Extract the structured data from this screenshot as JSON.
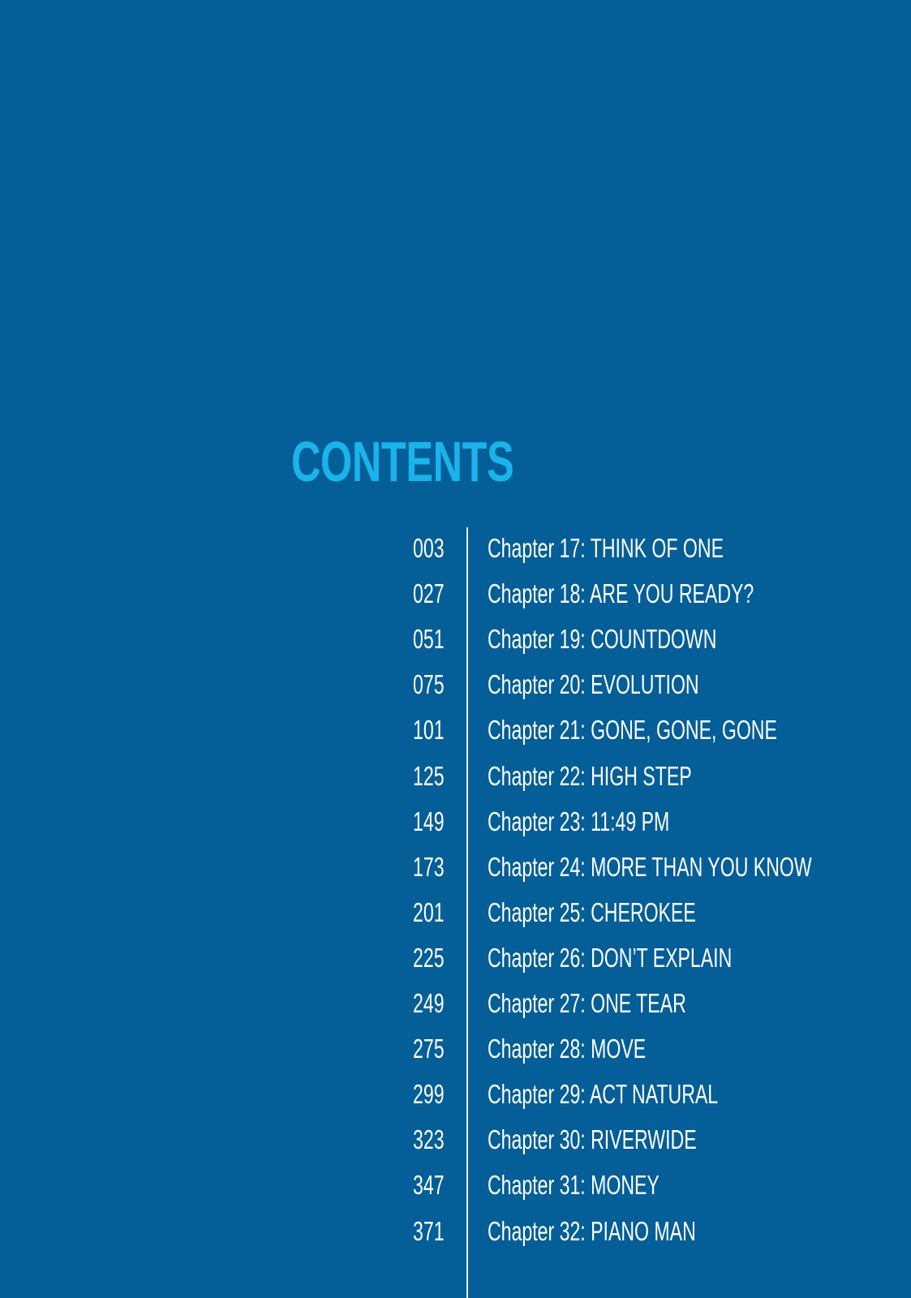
{
  "title": "CONTENTS",
  "colors": {
    "background": "#045e98",
    "title": "#1ab4ec",
    "text": "#ffffff"
  },
  "entries": [
    {
      "page": "003",
      "chapter": "Chapter 17: THINK OF ONE"
    },
    {
      "page": "027",
      "chapter": "Chapter 18: ARE YOU READY?"
    },
    {
      "page": "051",
      "chapter": "Chapter 19: COUNTDOWN"
    },
    {
      "page": "075",
      "chapter": "Chapter 20: EVOLUTION"
    },
    {
      "page": "101",
      "chapter": "Chapter 21: GONE, GONE, GONE"
    },
    {
      "page": "125",
      "chapter": "Chapter 22: HIGH STEP"
    },
    {
      "page": "149",
      "chapter": "Chapter 23: 11:49 PM"
    },
    {
      "page": "173",
      "chapter": "Chapter 24: MORE THAN YOU KNOW"
    },
    {
      "page": "201",
      "chapter": "Chapter 25: CHEROKEE"
    },
    {
      "page": "225",
      "chapter": "Chapter 26: DON’T EXPLAIN"
    },
    {
      "page": "249",
      "chapter": "Chapter 27: ONE TEAR"
    },
    {
      "page": "275",
      "chapter": "Chapter 28: MOVE"
    },
    {
      "page": "299",
      "chapter": "Chapter 29: ACT NATURAL"
    },
    {
      "page": "323",
      "chapter": "Chapter 30: RIVERWIDE"
    },
    {
      "page": "347",
      "chapter": "Chapter 31: MONEY"
    },
    {
      "page": "371",
      "chapter": "Chapter 32: PIANO MAN"
    }
  ]
}
